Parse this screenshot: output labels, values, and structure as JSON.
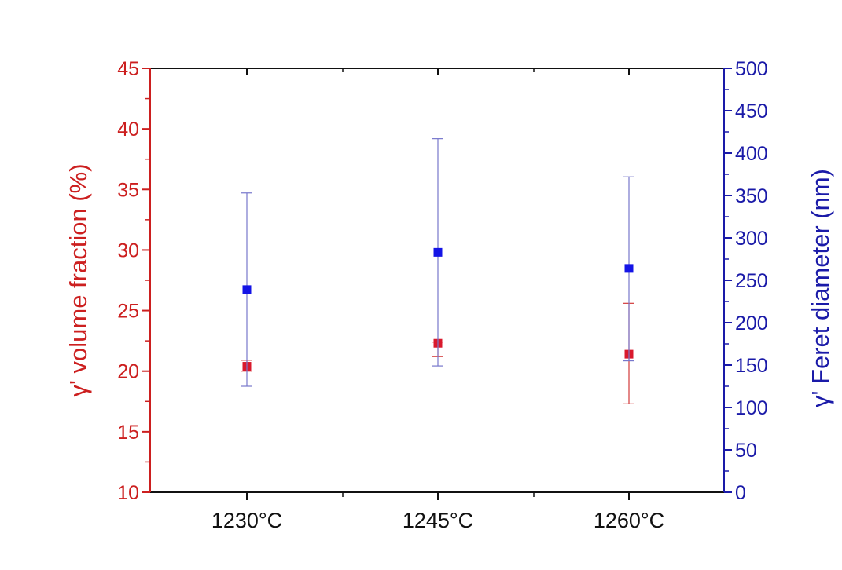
{
  "colors": {
    "left_axis": "#cc1f1f",
    "right_axis": "#1a1aa8",
    "frame": "#111111",
    "series_volume": "#d9192c",
    "series_feret": "#1414e6",
    "err_volume": "#d33a3a",
    "err_feret": "#7777cc"
  },
  "chart_data": {
    "type": "scatter",
    "categories": [
      "1230°C",
      "1245°C",
      "1260°C"
    ],
    "left_axis": {
      "label": "γ' volume fraction (%)",
      "ylim": [
        10,
        45
      ],
      "ticks": [
        10,
        15,
        20,
        25,
        30,
        35,
        40,
        45
      ]
    },
    "right_axis": {
      "label": "γ' Feret diameter (nm)",
      "ylim": [
        0,
        500
      ],
      "ticks": [
        0,
        50,
        100,
        150,
        200,
        250,
        300,
        350,
        400,
        450,
        500
      ]
    },
    "series": [
      {
        "axis": "left",
        "values": [
          20.4,
          22.3,
          21.4
        ],
        "err_low": [
          20.0,
          21.2,
          17.3
        ],
        "err_high": [
          20.9,
          22.4,
          25.6
        ]
      },
      {
        "axis": "right",
        "values": [
          239,
          283,
          264
        ],
        "err_low": [
          125,
          149,
          155
        ],
        "err_high": [
          353,
          417,
          372
        ]
      }
    ],
    "grid": false,
    "legend": "none"
  }
}
